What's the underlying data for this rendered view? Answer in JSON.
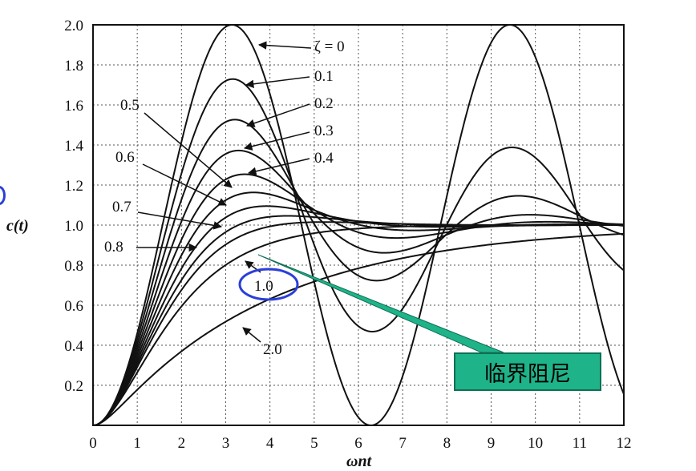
{
  "chart_data": {
    "type": "line",
    "xlabel": "ωnt",
    "ylabel": "c(t)",
    "xlim": [
      0,
      12
    ],
    "ylim": [
      0,
      2.0
    ],
    "grid": true,
    "x_ticks": [
      "0",
      "1",
      "2",
      "3",
      "4",
      "5",
      "6",
      "7",
      "8",
      "9",
      "10",
      "11",
      "12"
    ],
    "y_ticks": [
      "0.2",
      "0.4",
      "0.6",
      "0.8",
      "1.0",
      "1.2",
      "1.4",
      "1.6",
      "1.8",
      "2.0"
    ],
    "x_range": [
      0,
      12
    ],
    "series": [
      {
        "name": "ζ = 0",
        "zeta": 0
      },
      {
        "name": "0.1",
        "zeta": 0.1
      },
      {
        "name": "0.2",
        "zeta": 0.2
      },
      {
        "name": "0.3",
        "zeta": 0.3
      },
      {
        "name": "0.4",
        "zeta": 0.4
      },
      {
        "name": "0.5",
        "zeta": 0.5
      },
      {
        "name": "0.6",
        "zeta": 0.6
      },
      {
        "name": "0.7",
        "zeta": 0.7
      },
      {
        "name": "0.8",
        "zeta": 0.8
      },
      {
        "name": "1.0",
        "zeta": 1.0
      },
      {
        "name": "2.0",
        "zeta": 2.0
      }
    ]
  },
  "callout": {
    "text": "临界阻尼",
    "highlight_color": "#2a3fd6",
    "box_color": "#1fb38a"
  },
  "colors": {
    "curve": "#111111",
    "grid": "#555555"
  }
}
